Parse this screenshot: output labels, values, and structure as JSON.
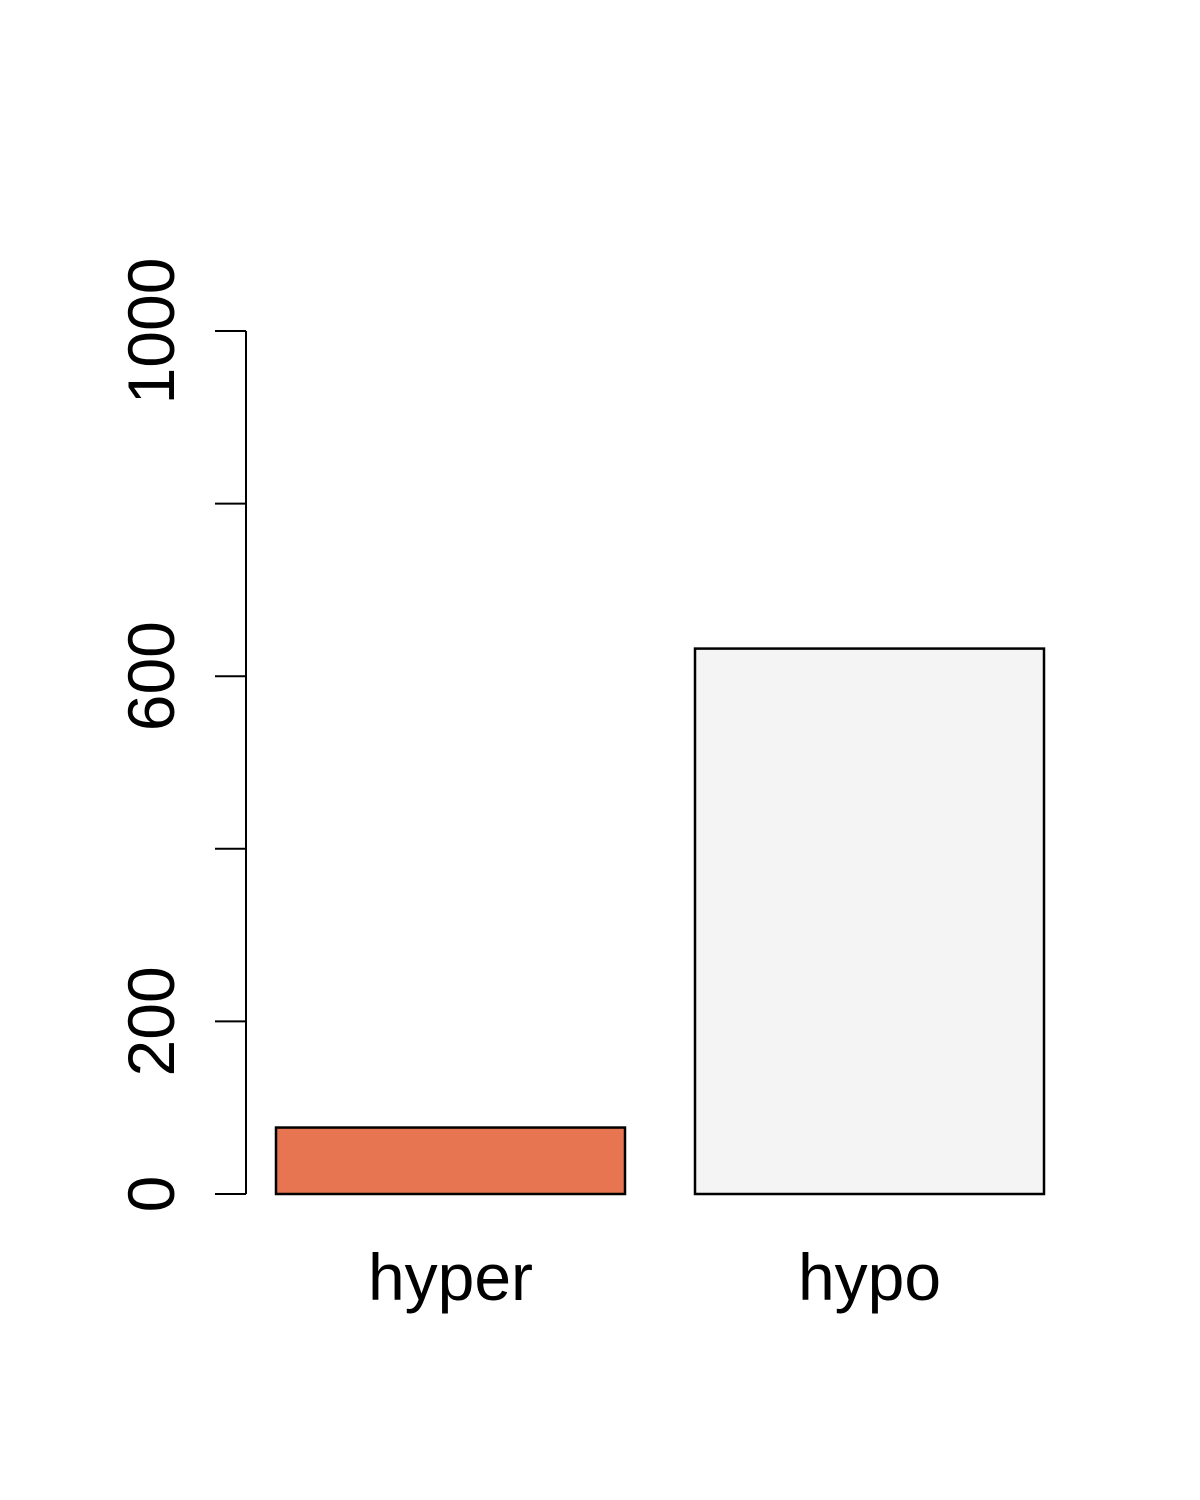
{
  "chart_data": {
    "type": "bar",
    "title": "",
    "xlabel": "",
    "ylabel": "",
    "categories": [
      "hyper",
      "hypo"
    ],
    "values": [
      77,
      632
    ],
    "colors": [
      "#E87551",
      "#F4F4F4"
    ],
    "ylim": [
      0,
      1000
    ],
    "yticks": [
      0,
      200,
      400,
      600,
      800,
      1000
    ],
    "ytick_labels": [
      "0",
      "200",
      "",
      "600",
      "",
      "1000"
    ],
    "grid": false,
    "legend": "none"
  }
}
